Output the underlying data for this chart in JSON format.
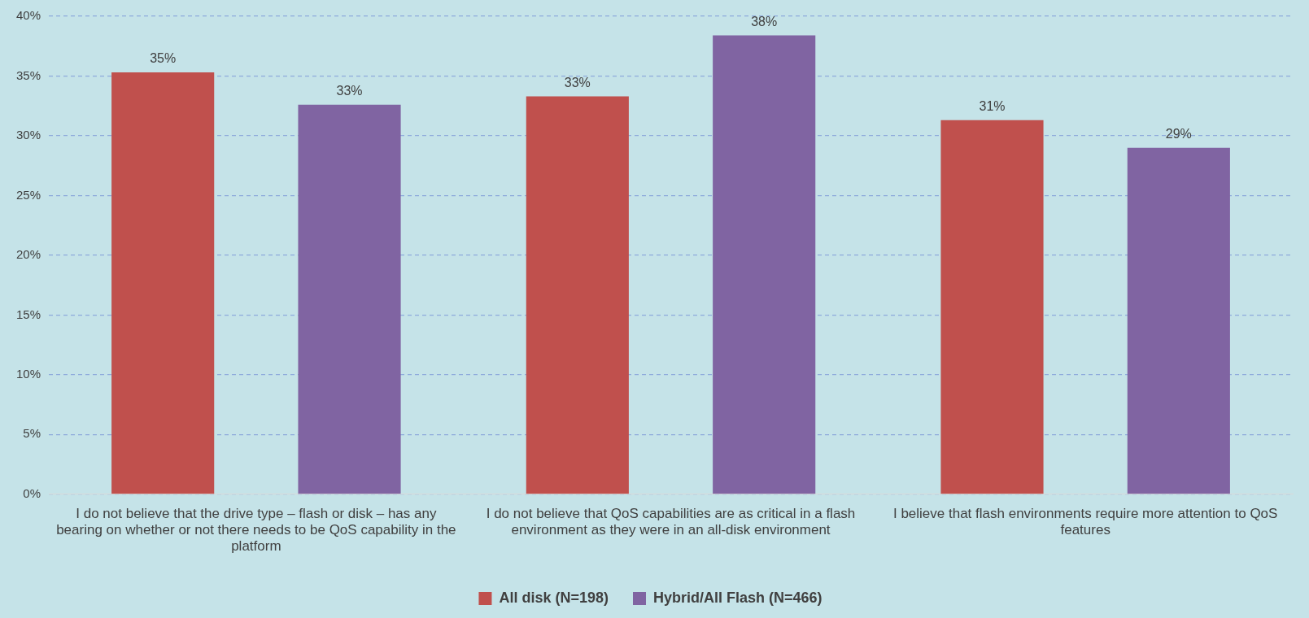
{
  "chart_data": {
    "type": "bar",
    "categories": [
      "I do not believe that the drive type – flash or disk – has any bearing on whether or not there needs to be QoS capability in the platform",
      "I do not believe that QoS capabilities are as critical in a flash environment as they were in an all-disk environment",
      "I believe that flash environments require more attention to QoS features"
    ],
    "series": [
      {
        "name": "All disk (N=198)",
        "color": "#c0504d",
        "values": [
          35.3,
          33.3,
          31.3
        ],
        "value_labels": [
          "35%",
          "33%",
          "31%"
        ]
      },
      {
        "name": "Hybrid/All Flash (N=466)",
        "color": "#8064a2",
        "values": [
          32.6,
          38.4,
          29.0
        ],
        "value_labels": [
          "33%",
          "38%",
          "29%"
        ]
      }
    ],
    "ylim": [
      0,
      40
    ],
    "yticks": [
      {
        "value": 0,
        "label": "0%"
      },
      {
        "value": 5,
        "label": "5%"
      },
      {
        "value": 10,
        "label": "10%"
      },
      {
        "value": 15,
        "label": "15%"
      },
      {
        "value": 20,
        "label": "20%"
      },
      {
        "value": 25,
        "label": "25%"
      },
      {
        "value": 30,
        "label": "30%"
      },
      {
        "value": 35,
        "label": "35%"
      },
      {
        "value": 40,
        "label": "40%"
      }
    ],
    "grid": "y",
    "legend": "bottom"
  }
}
